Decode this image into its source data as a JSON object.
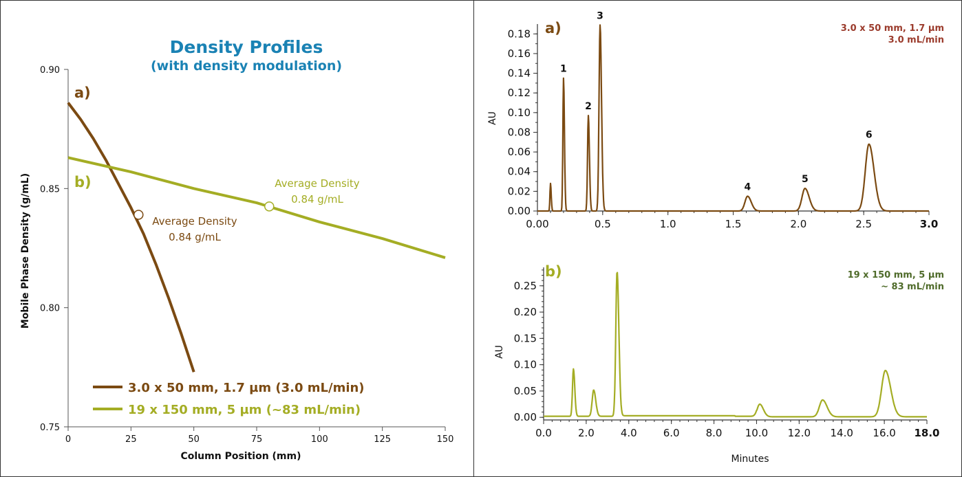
{
  "colors": {
    "brown": "#7b4a12",
    "olive": "#a4ad24",
    "title_blue": "#1a82b4",
    "red_note": "#9b3b2c",
    "dark_green_note": "#4f6b2a"
  },
  "chart_data": [
    {
      "type": "line",
      "title": "Density Profiles",
      "subtitle": "(with density modulation)",
      "xlabel": "Column Position (mm)",
      "ylabel": "Mobile Phase Density (g/mL)",
      "xlim": [
        0,
        150
      ],
      "ylim": [
        0.75,
        0.9
      ],
      "xticks": [
        "0",
        "25",
        "50",
        "75",
        "100",
        "125",
        "150"
      ],
      "yticks": [
        "0.75",
        "0.80",
        "0.85",
        "0.90"
      ],
      "grid": false,
      "legend_position": "bottom-left",
      "curve_labels": [
        "a)",
        "b)"
      ],
      "series": [
        {
          "name": "3.0 x 50 mm, 1.7 µm (3.0 mL/min)",
          "color": "#7b4a12",
          "x": [
            0,
            5,
            10,
            15,
            20,
            25,
            30,
            35,
            40,
            45,
            50
          ],
          "y": [
            0.886,
            0.879,
            0.871,
            0.862,
            0.852,
            0.842,
            0.831,
            0.818,
            0.804,
            0.789,
            0.773
          ]
        },
        {
          "name": "19 x 150 mm, 5 µm (~83 mL/min)",
          "color": "#a4ad24",
          "x": [
            0,
            25,
            50,
            75,
            100,
            125,
            150
          ],
          "y": [
            0.863,
            0.857,
            0.85,
            0.844,
            0.836,
            0.829,
            0.821
          ]
        }
      ],
      "annotations": [
        {
          "label": "Average Density",
          "value": "0.84 g/mL",
          "x": 28,
          "y": 0.839,
          "series": 0
        },
        {
          "label": "Average Density",
          "value": "0.84 g/mL",
          "x": 80,
          "y": 0.8425,
          "series": 1
        }
      ]
    },
    {
      "type": "line",
      "panel_label": "a)",
      "note_line1": "3.0 x 50 mm, 1.7 µm",
      "note_line2": "3.0 mL/min",
      "ylabel": "AU",
      "xlim": [
        0,
        3.0
      ],
      "ylim": [
        0,
        0.19
      ],
      "xticks": [
        "0.00",
        "0.5",
        "1.0",
        "1.5",
        "2.0",
        "2.5",
        "3.0"
      ],
      "yticks": [
        "0.00",
        "0.02",
        "0.04",
        "0.06",
        "0.08",
        "0.10",
        "0.12",
        "0.14",
        "0.16",
        "0.18"
      ],
      "color": "#7b4a12",
      "peaks": [
        {
          "t": 0.1,
          "h": 0.028,
          "w": 0.004,
          "label": ""
        },
        {
          "t": 0.2,
          "h": 0.135,
          "w": 0.005,
          "label": "1"
        },
        {
          "t": 0.39,
          "h": 0.097,
          "w": 0.006,
          "label": "2"
        },
        {
          "t": 0.48,
          "h": 0.189,
          "w": 0.008,
          "label": "3"
        },
        {
          "t": 1.61,
          "h": 0.015,
          "w": 0.02,
          "label": "4"
        },
        {
          "t": 2.05,
          "h": 0.023,
          "w": 0.023,
          "label": "5"
        },
        {
          "t": 2.54,
          "h": 0.068,
          "w": 0.028,
          "label": "6"
        }
      ]
    },
    {
      "type": "line",
      "panel_label": "b)",
      "note_line1": "19 x 150 mm, 5 µm",
      "note_line2": "~ 83 mL/min",
      "ylabel": "AU",
      "xlabel": "Minutes",
      "xlim": [
        0,
        18.0
      ],
      "ylim": [
        -0.005,
        0.285
      ],
      "xticks": [
        "0.0",
        "2.0",
        "4.0",
        "6.0",
        "8.0",
        "10.0",
        "12.0",
        "14.0",
        "16.0",
        "18.0"
      ],
      "yticks": [
        "0.00",
        "0.05",
        "0.10",
        "0.15",
        "0.20",
        "0.25"
      ],
      "color": "#a4ad24",
      "peaks": [
        {
          "t": 1.4,
          "h": 0.09,
          "w": 0.045
        },
        {
          "t": 2.35,
          "h": 0.05,
          "w": 0.07
        },
        {
          "t": 3.45,
          "h": 0.275,
          "w": 0.06
        },
        {
          "t": 10.15,
          "h": 0.024,
          "w": 0.12
        },
        {
          "t": 13.1,
          "h": 0.032,
          "w": 0.15
        },
        {
          "t": 16.05,
          "h": 0.088,
          "w": 0.18
        }
      ]
    }
  ]
}
